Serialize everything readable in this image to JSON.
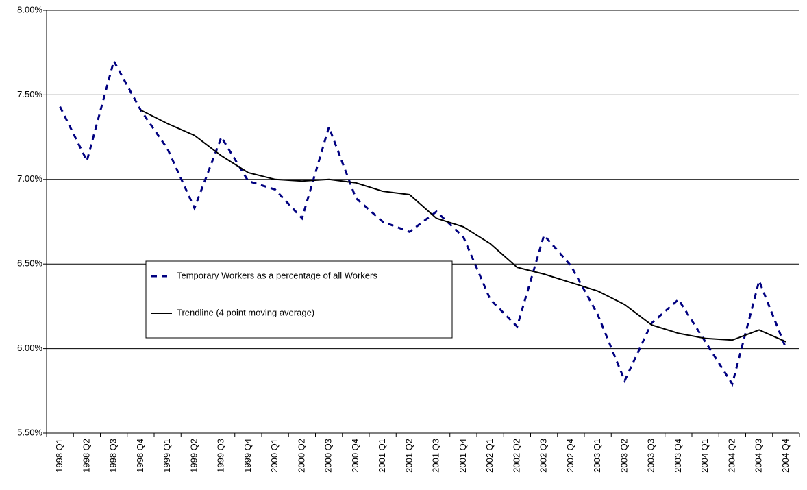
{
  "chart_data": {
    "type": "line",
    "categories": [
      "1998 Q1",
      "1998 Q2",
      "1998 Q3",
      "1998 Q4",
      "1999 Q1",
      "1999 Q2",
      "1999 Q3",
      "1999 Q4",
      "2000 Q1",
      "2000 Q2",
      "2000 Q3",
      "2000 Q4",
      "2001 Q1",
      "2001 Q2",
      "2001 Q3",
      "2001 Q4",
      "2002 Q1",
      "2002 Q2",
      "2002 Q3",
      "2002 Q4",
      "2003 Q1",
      "2003 Q2",
      "2003 Q3",
      "2003 Q4",
      "2004 Q1",
      "2004 Q2",
      "2004 Q3",
      "2004 Q4"
    ],
    "series": [
      {
        "name": "Temporary Workers as a percentage of all Workers",
        "color": "#000080",
        "dashed": true,
        "values": [
          7.43,
          7.11,
          7.7,
          7.41,
          7.18,
          6.83,
          7.25,
          6.99,
          6.94,
          6.77,
          7.31,
          6.89,
          6.75,
          6.69,
          6.81,
          6.66,
          6.29,
          6.13,
          6.67,
          6.49,
          6.2,
          5.81,
          6.15,
          6.29,
          6.04,
          5.79,
          6.4,
          6.0
        ]
      },
      {
        "name": "Trendline (4 point moving average)",
        "color": "#000000",
        "dashed": false,
        "values": [
          null,
          null,
          null,
          7.41,
          7.33,
          7.26,
          7.14,
          7.04,
          7.0,
          6.99,
          7.0,
          6.98,
          6.93,
          6.91,
          6.77,
          6.72,
          6.62,
          6.48,
          6.44,
          6.39,
          6.34,
          6.26,
          6.14,
          6.09,
          6.06,
          6.05,
          6.11,
          6.04
        ]
      }
    ],
    "ylim": [
      5.5,
      8
    ],
    "yticks": [
      {
        "value": 5.5,
        "label": "5.50%"
      },
      {
        "value": 6,
        "label": "6.00%"
      },
      {
        "value": 6.5,
        "label": "6.50%"
      },
      {
        "value": 7,
        "label": "7.00%"
      },
      {
        "value": 7.5,
        "label": "7.50%"
      },
      {
        "value": 8,
        "label": "8.00%"
      }
    ],
    "grid": true
  }
}
